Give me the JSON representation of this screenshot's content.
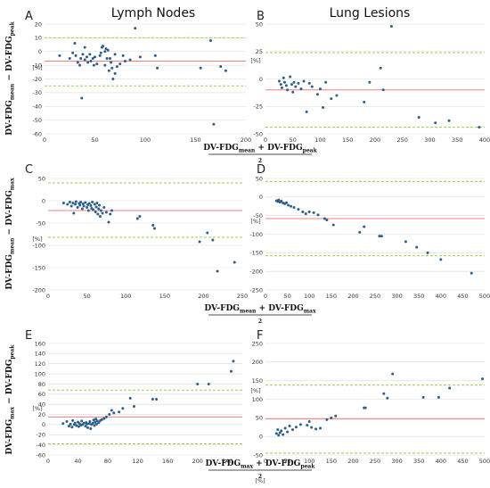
{
  "column_titles": [
    "Lymph Nodes",
    "Lung Lesions"
  ],
  "row_ylabels": [
    {
      "a": "DV-FDG",
      "a_sub": "mean",
      "b": "DV-FDG",
      "b_sub": "peak"
    },
    {
      "a": "DV-FDG",
      "a_sub": "mean",
      "b": "DV-FDG",
      "b_sub": "max"
    },
    {
      "a": "DV-FDG",
      "a_sub": "max",
      "b": "DV-FDG",
      "b_sub": "peak"
    }
  ],
  "row_xlabels": [
    {
      "a": "DV-FDG",
      "a_sub": "mean",
      "b": "DV-FDG",
      "b_sub": "peak",
      "den": "2"
    },
    {
      "a": "DV-FDG",
      "a_sub": "mean",
      "b": "DV-FDG",
      "b_sub": "max",
      "den": "2"
    },
    {
      "a": "DV-FDG",
      "a_sub": "max",
      "b": "DV-FDG",
      "b_sub": "peak",
      "den": "2"
    }
  ],
  "unit_label": "[%]",
  "colors": {
    "points": "#2c5f8a",
    "mean_line": "#f08080",
    "loa_line": "#9acd5a",
    "grid": "#d9d9d9"
  },
  "chart_data": [
    {
      "panel": "A",
      "type": "scatter",
      "xlim": [
        0,
        200
      ],
      "ylim": [
        -60,
        20
      ],
      "xticks": [
        0,
        50,
        100,
        150,
        200
      ],
      "yticks": [
        -60,
        -50,
        -40,
        -30,
        -20,
        -10,
        0,
        10,
        20
      ],
      "mean": -7,
      "loa": [
        10,
        -25
      ],
      "points": [
        [
          15,
          -3
        ],
        [
          25,
          -5
        ],
        [
          28,
          -1
        ],
        [
          30,
          6
        ],
        [
          31,
          -3
        ],
        [
          33,
          -8
        ],
        [
          35,
          -10
        ],
        [
          36,
          -5
        ],
        [
          37,
          -34
        ],
        [
          38,
          -2
        ],
        [
          40,
          -6
        ],
        [
          40,
          3
        ],
        [
          42,
          -4
        ],
        [
          43,
          -8
        ],
        [
          45,
          -2
        ],
        [
          46,
          -7
        ],
        [
          48,
          -5
        ],
        [
          49,
          -10
        ],
        [
          50,
          -4
        ],
        [
          52,
          -9
        ],
        [
          55,
          -3
        ],
        [
          56,
          -1
        ],
        [
          57,
          3
        ],
        [
          58,
          4
        ],
        [
          60,
          -10
        ],
        [
          60,
          0
        ],
        [
          61,
          2
        ],
        [
          62,
          -5
        ],
        [
          63,
          1
        ],
        [
          64,
          -14
        ],
        [
          65,
          -5
        ],
        [
          66,
          -8
        ],
        [
          67,
          -12
        ],
        [
          68,
          -20
        ],
        [
          70,
          -16
        ],
        [
          70,
          -2
        ],
        [
          72,
          -11
        ],
        [
          75,
          -9
        ],
        [
          78,
          -3
        ],
        [
          80,
          -7
        ],
        [
          85,
          -6
        ],
        [
          90,
          17
        ],
        [
          95,
          -4
        ],
        [
          110,
          -3
        ],
        [
          112,
          -12
        ],
        [
          155,
          -12
        ],
        [
          165,
          8
        ],
        [
          168,
          -53
        ],
        [
          175,
          -11
        ],
        [
          180,
          -14
        ]
      ]
    },
    {
      "panel": "B",
      "type": "scatter",
      "xlim": [
        0,
        400
      ],
      "ylim": [
        -50,
        50
      ],
      "xticks": [
        0,
        50,
        100,
        150,
        200,
        250,
        300,
        350,
        400
      ],
      "yticks": [
        -50,
        -25,
        0,
        25,
        50
      ],
      "mean": -10,
      "loa": [
        24,
        -44
      ],
      "points": [
        [
          25,
          -2
        ],
        [
          28,
          -5
        ],
        [
          30,
          -8
        ],
        [
          33,
          1
        ],
        [
          35,
          -3
        ],
        [
          38,
          -6
        ],
        [
          40,
          -10
        ],
        [
          45,
          2
        ],
        [
          48,
          -5
        ],
        [
          50,
          -12
        ],
        [
          52,
          -3
        ],
        [
          55,
          -7
        ],
        [
          60,
          -4
        ],
        [
          65,
          -9
        ],
        [
          70,
          -2
        ],
        [
          75,
          -30
        ],
        [
          80,
          -4
        ],
        [
          85,
          -7
        ],
        [
          95,
          -14
        ],
        [
          100,
          -9
        ],
        [
          105,
          -26
        ],
        [
          110,
          -3
        ],
        [
          120,
          -18
        ],
        [
          130,
          -15
        ],
        [
          180,
          -21
        ],
        [
          190,
          -3
        ],
        [
          210,
          10
        ],
        [
          215,
          -10
        ],
        [
          230,
          48
        ],
        [
          280,
          -35
        ],
        [
          310,
          -40
        ],
        [
          335,
          -38
        ],
        [
          390,
          -44
        ]
      ]
    },
    {
      "panel": "C",
      "type": "scatter",
      "xlim": [
        0,
        250
      ],
      "ylim": [
        -200,
        50
      ],
      "xticks": [
        0,
        50,
        100,
        150,
        200,
        250
      ],
      "yticks": [
        -200,
        -150,
        -100,
        -50,
        0,
        50
      ],
      "mean": -22,
      "loa": [
        40,
        -82
      ],
      "points": [
        [
          20,
          -5
        ],
        [
          25,
          -8
        ],
        [
          28,
          -3
        ],
        [
          30,
          -12
        ],
        [
          32,
          -5
        ],
        [
          33,
          -28
        ],
        [
          35,
          -8
        ],
        [
          36,
          -2
        ],
        [
          38,
          -15
        ],
        [
          40,
          -6
        ],
        [
          41,
          -10
        ],
        [
          42,
          -3
        ],
        [
          44,
          -18
        ],
        [
          45,
          -7
        ],
        [
          46,
          -12
        ],
        [
          48,
          -4
        ],
        [
          50,
          -15
        ],
        [
          51,
          -9
        ],
        [
          52,
          -22
        ],
        [
          53,
          -6
        ],
        [
          55,
          -11
        ],
        [
          56,
          -17
        ],
        [
          57,
          -3
        ],
        [
          58,
          -20
        ],
        [
          60,
          -8
        ],
        [
          61,
          -25
        ],
        [
          62,
          -14
        ],
        [
          63,
          -5
        ],
        [
          64,
          -30
        ],
        [
          65,
          -18
        ],
        [
          66,
          -10
        ],
        [
          67,
          -35
        ],
        [
          68,
          -22
        ],
        [
          70,
          -28
        ],
        [
          72,
          -15
        ],
        [
          75,
          -26
        ],
        [
          78,
          -48
        ],
        [
          80,
          -30
        ],
        [
          82,
          -22
        ],
        [
          115,
          -40
        ],
        [
          118,
          -35
        ],
        [
          135,
          -55
        ],
        [
          137,
          -62
        ],
        [
          195,
          -92
        ],
        [
          205,
          -72
        ],
        [
          212,
          -88
        ],
        [
          218,
          -158
        ],
        [
          240,
          -138
        ]
      ]
    },
    {
      "panel": "D",
      "type": "scatter",
      "xlim": [
        0,
        500
      ],
      "ylim": [
        -250,
        50
      ],
      "xticks": [
        0,
        50,
        100,
        150,
        200,
        250,
        300,
        350,
        400,
        450,
        500
      ],
      "yticks": [
        -250,
        -200,
        -150,
        -100,
        -50,
        0,
        50
      ],
      "mean": -58,
      "loa": [
        42,
        -158
      ],
      "points": [
        [
          25,
          -10
        ],
        [
          28,
          -12
        ],
        [
          30,
          -8
        ],
        [
          33,
          -14
        ],
        [
          36,
          -11
        ],
        [
          40,
          -16
        ],
        [
          44,
          -18
        ],
        [
          48,
          -15
        ],
        [
          52,
          -22
        ],
        [
          58,
          -25
        ],
        [
          65,
          -28
        ],
        [
          75,
          -33
        ],
        [
          85,
          -40
        ],
        [
          92,
          -45
        ],
        [
          100,
          -40
        ],
        [
          110,
          -42
        ],
        [
          120,
          -48
        ],
        [
          135,
          -58
        ],
        [
          140,
          -62
        ],
        [
          155,
          -75
        ],
        [
          215,
          -95
        ],
        [
          225,
          -80
        ],
        [
          260,
          -105
        ],
        [
          265,
          -105
        ],
        [
          320,
          -120
        ],
        [
          345,
          -135
        ],
        [
          370,
          -150
        ],
        [
          400,
          -168
        ],
        [
          470,
          -205
        ]
      ]
    },
    {
      "panel": "E",
      "type": "scatter",
      "xlim": [
        0,
        260
      ],
      "ylim": [
        -60,
        160
      ],
      "xticks": [
        0,
        40,
        80,
        120,
        160,
        200,
        240
      ],
      "yticks": [
        -60,
        -40,
        -20,
        0,
        20,
        40,
        60,
        80,
        100,
        120,
        140,
        160
      ],
      "mean": 15,
      "loa": [
        68,
        -38
      ],
      "points": [
        [
          20,
          2
        ],
        [
          25,
          6
        ],
        [
          28,
          -3
        ],
        [
          30,
          1
        ],
        [
          32,
          -5
        ],
        [
          33,
          8
        ],
        [
          35,
          0
        ],
        [
          36,
          3
        ],
        [
          38,
          -2
        ],
        [
          40,
          5
        ],
        [
          41,
          -4
        ],
        [
          42,
          2
        ],
        [
          44,
          -1
        ],
        [
          45,
          7
        ],
        [
          46,
          0
        ],
        [
          48,
          3
        ],
        [
          50,
          -3
        ],
        [
          51,
          4
        ],
        [
          52,
          1
        ],
        [
          53,
          -6
        ],
        [
          55,
          2
        ],
        [
          56,
          6
        ],
        [
          57,
          -8
        ],
        [
          58,
          0
        ],
        [
          60,
          3
        ],
        [
          61,
          9
        ],
        [
          62,
          -2
        ],
        [
          63,
          5
        ],
        [
          64,
          11
        ],
        [
          65,
          1
        ],
        [
          66,
          7
        ],
        [
          68,
          4
        ],
        [
          70,
          8
        ],
        [
          72,
          10
        ],
        [
          75,
          12
        ],
        [
          78,
          15
        ],
        [
          82,
          20
        ],
        [
          85,
          28
        ],
        [
          88,
          23
        ],
        [
          95,
          25
        ],
        [
          100,
          32
        ],
        [
          110,
          52
        ],
        [
          115,
          36
        ],
        [
          140,
          50
        ],
        [
          145,
          50
        ],
        [
          200,
          80
        ],
        [
          215,
          80
        ],
        [
          245,
          105
        ],
        [
          248,
          125
        ]
      ]
    },
    {
      "panel": "F",
      "type": "scatter",
      "xlim": [
        0,
        500
      ],
      "ylim": [
        -50,
        250
      ],
      "xticks": [
        0,
        50,
        100,
        150,
        200,
        250,
        300,
        350,
        400,
        450,
        500
      ],
      "yticks": [
        -50,
        0,
        50,
        100,
        150,
        200,
        250
      ],
      "mean": 47,
      "loa": [
        138,
        -45
      ],
      "points": [
        [
          25,
          8
        ],
        [
          28,
          18
        ],
        [
          30,
          3
        ],
        [
          33,
          10
        ],
        [
          36,
          15
        ],
        [
          40,
          5
        ],
        [
          45,
          22
        ],
        [
          50,
          12
        ],
        [
          55,
          28
        ],
        [
          62,
          18
        ],
        [
          70,
          25
        ],
        [
          80,
          32
        ],
        [
          95,
          30
        ],
        [
          100,
          40
        ],
        [
          105,
          24
        ],
        [
          115,
          20
        ],
        [
          125,
          22
        ],
        [
          140,
          45
        ],
        [
          150,
          50
        ],
        [
          160,
          55
        ],
        [
          225,
          77
        ],
        [
          228,
          77
        ],
        [
          270,
          115
        ],
        [
          278,
          103
        ],
        [
          290,
          168
        ],
        [
          360,
          105
        ],
        [
          395,
          105
        ],
        [
          420,
          130
        ],
        [
          495,
          155
        ]
      ]
    }
  ]
}
